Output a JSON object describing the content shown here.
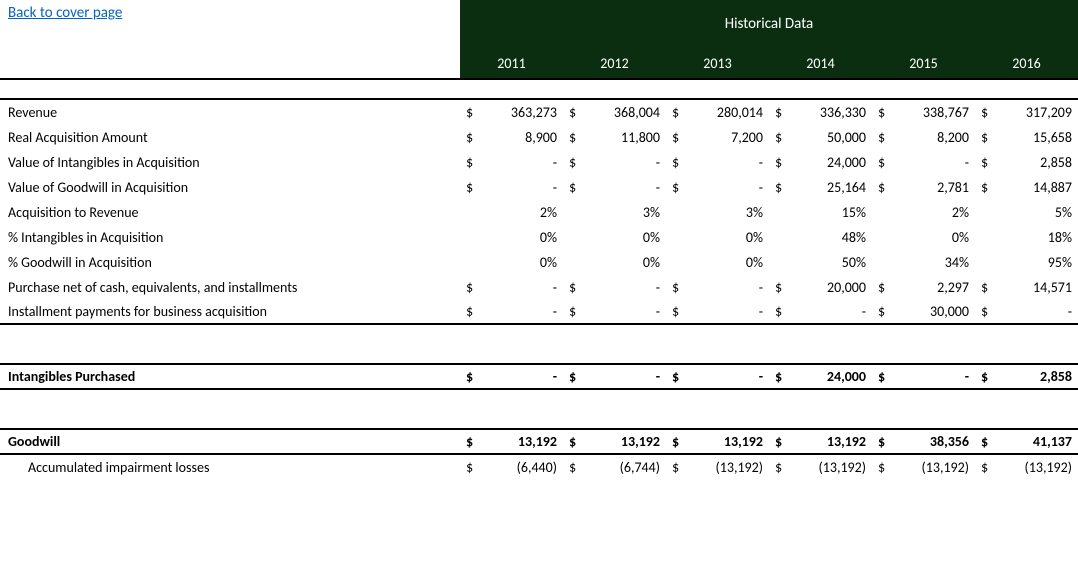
{
  "link": {
    "text": "Back to cover page "
  },
  "header": {
    "title": "Historical Data"
  },
  "years": [
    "2011",
    "2012",
    "2013",
    "2014",
    "2015",
    "2016"
  ],
  "rows": [
    {
      "label": "Revenue",
      "type": "currency",
      "vals": [
        "363,273",
        "368,004",
        "280,014",
        "336,330",
        "338,767",
        "317,209"
      ]
    },
    {
      "label": "Real Acquisition Amount",
      "type": "currency",
      "vals": [
        "8,900",
        "11,800",
        "7,200",
        "50,000",
        "8,200",
        "15,658"
      ]
    },
    {
      "label": "Value of Intangibles in Acquisition",
      "type": "currency",
      "vals": [
        "-",
        "-",
        "-",
        "24,000",
        "-",
        "2,858"
      ]
    },
    {
      "label": "Value of Goodwill in Acquisition",
      "type": "currency",
      "vals": [
        "-",
        "-",
        "-",
        "25,164",
        "2,781",
        "14,887"
      ]
    },
    {
      "label": "Acquisition to Revenue",
      "type": "pct",
      "vals": [
        "2%",
        "3%",
        "3%",
        "15%",
        "2%",
        "5%"
      ]
    },
    {
      "label": "% Intangibles in Acquisition",
      "type": "pct",
      "vals": [
        "0%",
        "0%",
        "0%",
        "48%",
        "0%",
        "18%"
      ]
    },
    {
      "label": "% Goodwill in Acquisition",
      "type": "pct",
      "vals": [
        "0%",
        "0%",
        "0%",
        "50%",
        "34%",
        "95%"
      ]
    },
    {
      "label": "Purchase net of cash, equivalents, and installments",
      "type": "currency",
      "vals": [
        "-",
        "-",
        "-",
        "20,000",
        "2,297",
        "14,571"
      ]
    },
    {
      "label": "Installment payments for business acquisition",
      "type": "currency",
      "vals": [
        "-",
        "-",
        "-",
        "-",
        "30,000",
        "-"
      ]
    }
  ],
  "intangibles": {
    "label": "Intangibles Purchased",
    "vals": [
      "-",
      "-",
      "-",
      "24,000",
      "-",
      "2,858"
    ]
  },
  "goodwill": {
    "label": "Goodwill",
    "vals": [
      "13,192",
      "13,192",
      "13,192",
      "13,192",
      "38,356",
      "41,137"
    ]
  },
  "impairment": {
    "label": "Accumulated impairment losses",
    "vals": [
      "(6,440)",
      "(6,744)",
      "(13,192)",
      "(13,192)",
      "(13,192)",
      "(13,192)"
    ]
  }
}
